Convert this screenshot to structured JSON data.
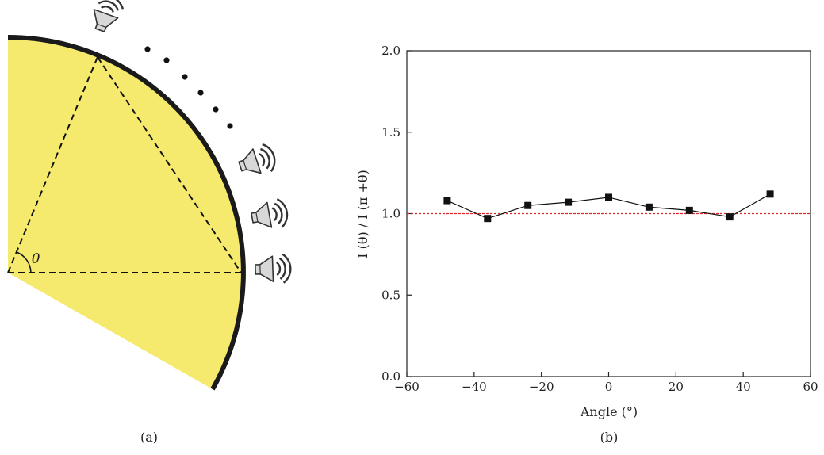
{
  "panel_a": {
    "caption": "(a)",
    "angle_symbol": "θ",
    "fill_color": "#f5ea6e",
    "rim_color": "#1a1a1a",
    "icons": [
      "speaker-icon",
      "speaker-icon",
      "speaker-icon",
      "speaker-icon"
    ]
  },
  "panel_b": {
    "caption": "(b)"
  },
  "chart_data": {
    "type": "line",
    "xlabel": "Angle (°)",
    "ylabel": "I (θ) / I (π +θ)",
    "xlim": [
      -60,
      60
    ],
    "ylim": [
      0.0,
      2.0
    ],
    "xticks": [
      "−60",
      "−40",
      "−20",
      "0",
      "20",
      "40",
      "60"
    ],
    "yticks": [
      "0.0",
      "0.5",
      "1.0",
      "1.5",
      "2.0"
    ],
    "grid": false,
    "series": [
      {
        "marker": "square",
        "color": "#111111",
        "x": [
          -48,
          -36,
          -24,
          -12,
          0,
          12,
          24,
          36,
          48
        ],
        "y": [
          1.08,
          0.97,
          1.05,
          1.07,
          1.1,
          1.04,
          1.02,
          0.98,
          1.12
        ]
      }
    ],
    "reference_line": {
      "y": 1.0,
      "color": "#e0242c",
      "style": "dotted"
    }
  }
}
